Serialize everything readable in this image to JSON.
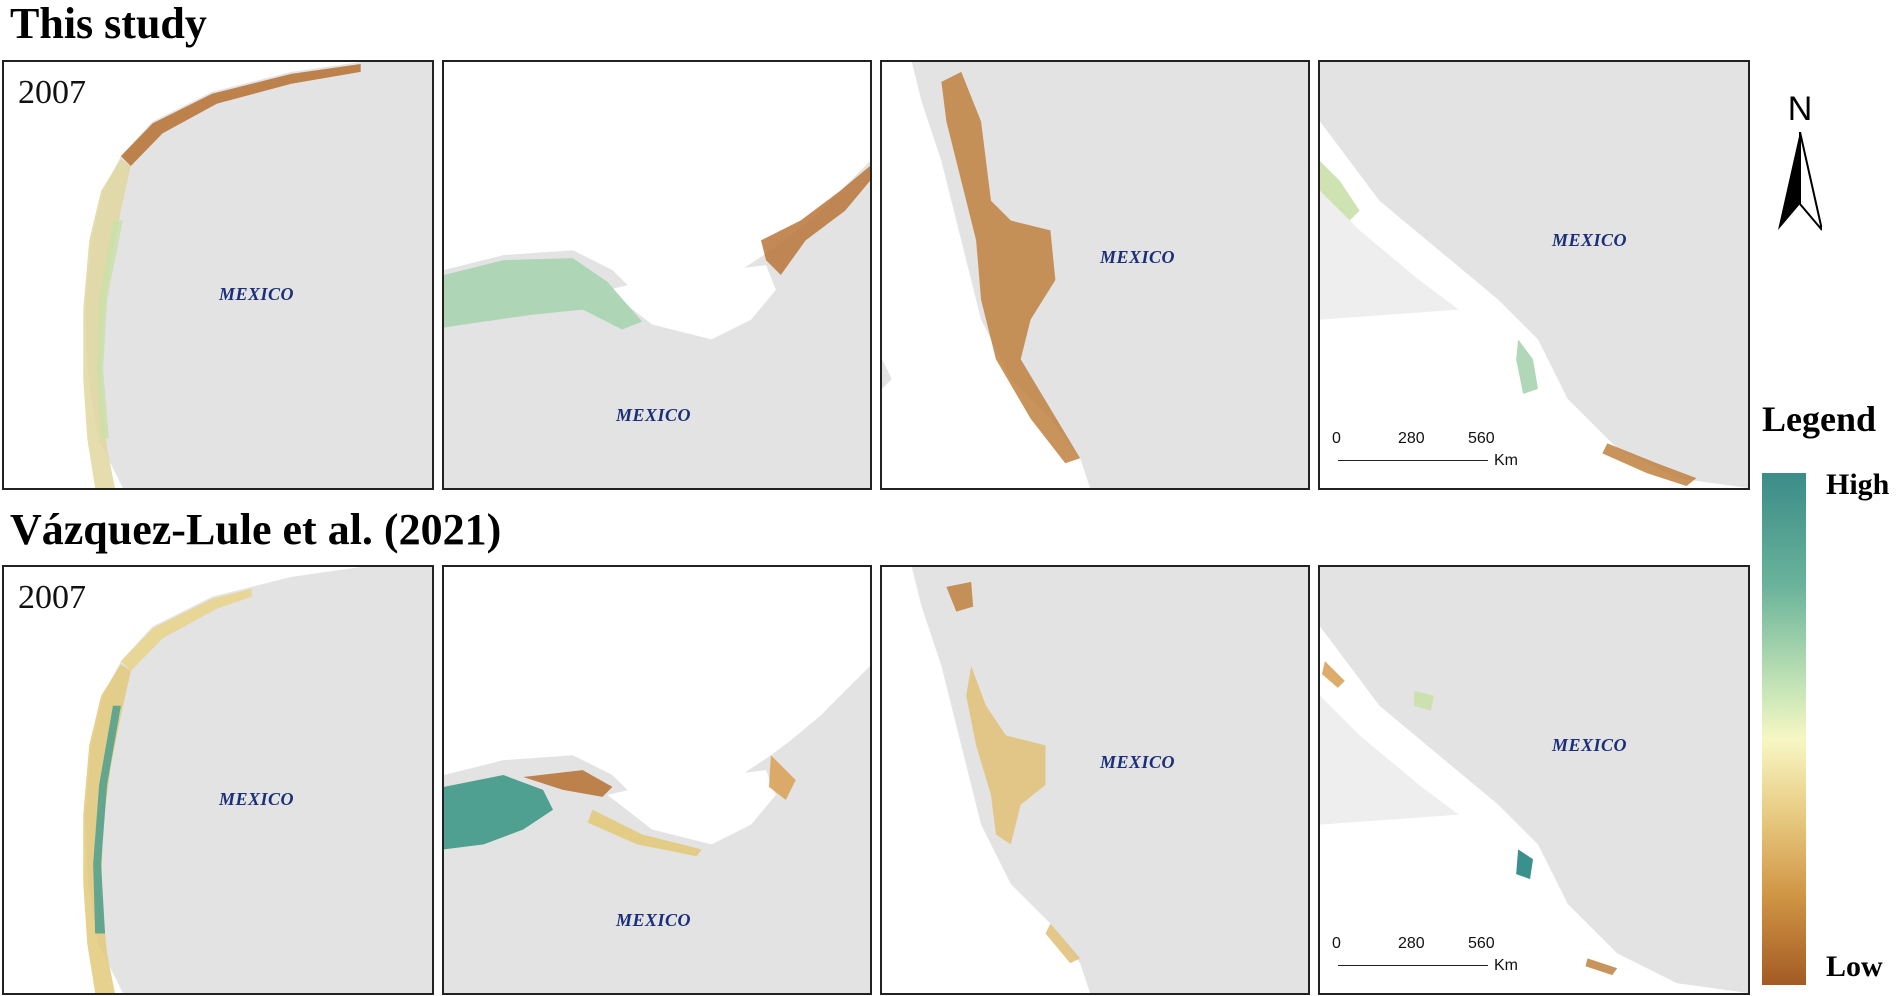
{
  "rows": [
    {
      "title": "This study",
      "year": "2007"
    },
    {
      "title": "Vázquez-Lule et al. (2021)",
      "year": "2007"
    }
  ],
  "country_label": "MEXICO",
  "scalebar": {
    "ticks": [
      "0",
      "280",
      "560"
    ],
    "unit": "Km"
  },
  "north_arrow": {
    "label": "N",
    "icon": "north-arrow-icon"
  },
  "legend": {
    "title": "Legend",
    "high": "High",
    "low": "Low",
    "colors": [
      "#3b8c88",
      "#6ab39b",
      "#c5e5b6",
      "#f7f7c4",
      "#e9cd85",
      "#cf9443",
      "#a35a24"
    ]
  },
  "colors": {
    "land": "#e3e3e3",
    "sea": "#ffffff",
    "border": "#222222",
    "country_text": "#1a2f7a"
  }
}
